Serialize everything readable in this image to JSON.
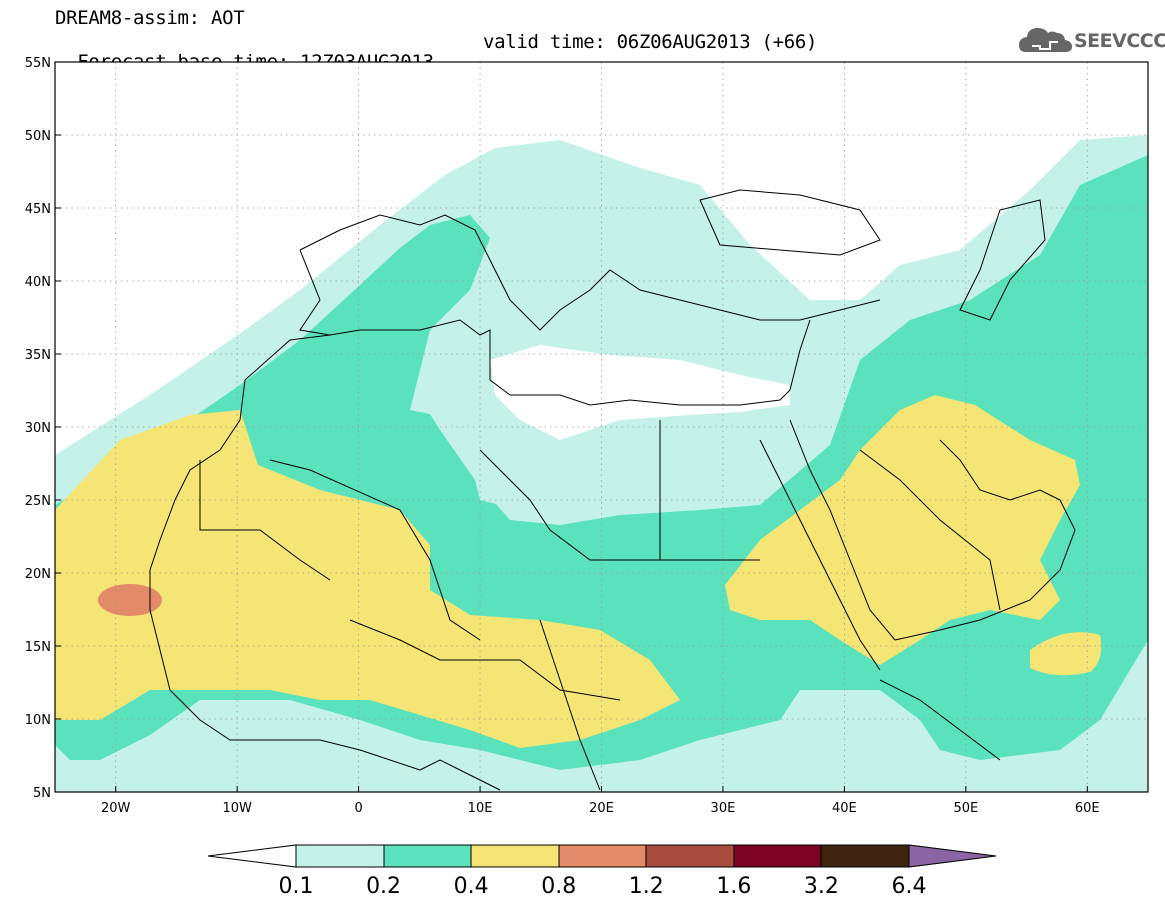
{
  "header": {
    "title_line1": "DREAM8-assim: AOT",
    "base_time": "Forecast base time: 12Z03AUG2013",
    "valid_time": "valid time: 06Z06AUG2013 (+66)"
  },
  "logo": {
    "text": "SEEVCCC",
    "icon": "cloud-icon"
  },
  "map": {
    "lat_labels": [
      "55N",
      "50N",
      "45N",
      "40N",
      "35N",
      "30N",
      "25N",
      "20N",
      "15N",
      "10N",
      "5N"
    ],
    "lon_labels": [
      "20W",
      "10W",
      "0",
      "10E",
      "20E",
      "30E",
      "40E",
      "50E",
      "60E"
    ],
    "lat_range": [
      5,
      55
    ],
    "lon_range": [
      -25,
      65
    ],
    "grid": "dotted"
  },
  "colorbar": {
    "levels": [
      "0.1",
      "0.2",
      "0.4",
      "0.8",
      "1.2",
      "1.6",
      "3.2",
      "6.4"
    ],
    "colors": {
      "below": "#ffffff",
      "c1": "#c4f2e9",
      "c2": "#5ae2bd",
      "c3": "#f5e574",
      "c4": "#e38a68",
      "c5": "#a94b3f",
      "c6": "#7c0322",
      "c7": "#3e2410",
      "above": "#8a64a4"
    }
  }
}
